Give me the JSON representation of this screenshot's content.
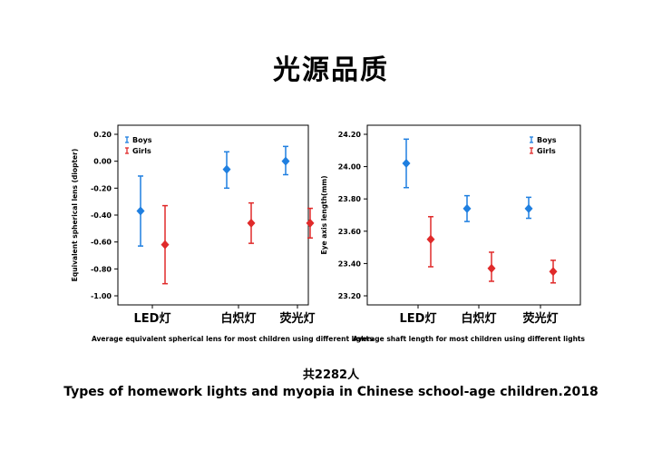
{
  "page": {
    "title": "光源品质",
    "count": "共2282人",
    "caption": "Types of homework lights and myopia in Chinese school-age children.2018"
  },
  "colors": {
    "boys": "#1f7fe0",
    "girls": "#e02a2a"
  },
  "chart_data": [
    {
      "type": "errorbar",
      "categories": [
        "LED灯",
        "白炽灯",
        "荧光灯"
      ],
      "ylabel": "Equivalent spherical lens (diopter)",
      "caption": "Average equivalent spherical lens for most children using different lights",
      "ylim": [
        -1.0,
        0.2
      ],
      "yticks": [
        "0.20",
        "0.00",
        "-0.20",
        "-0.40",
        "-0.60",
        "-0.80",
        "-1.00"
      ],
      "legend_position": "top-left",
      "series": [
        {
          "name": "Boys",
          "mean": [
            -0.37,
            -0.06,
            0.0
          ],
          "lower": [
            -0.63,
            -0.2,
            -0.1
          ],
          "upper": [
            -0.11,
            0.07,
            0.11
          ]
        },
        {
          "name": "Girls",
          "mean": [
            -0.62,
            -0.46,
            -0.46
          ],
          "lower": [
            -0.91,
            -0.61,
            -0.57
          ],
          "upper": [
            -0.33,
            -0.31,
            -0.35
          ]
        }
      ]
    },
    {
      "type": "errorbar",
      "categories": [
        "LED灯",
        "白炽灯",
        "荧光灯"
      ],
      "ylabel": "Eye axis length(mm)",
      "caption": "Average shaft length for most children using different lights",
      "ylim": [
        23.2,
        24.2
      ],
      "yticks": [
        "24.20",
        "24.00",
        "23.80",
        "23.60",
        "23.40",
        "23.20"
      ],
      "legend_position": "top-right",
      "series": [
        {
          "name": "Boys",
          "mean": [
            24.02,
            23.74,
            23.74
          ],
          "lower": [
            23.87,
            23.66,
            23.68
          ],
          "upper": [
            24.17,
            23.82,
            23.81
          ]
        },
        {
          "name": "Girls",
          "mean": [
            23.55,
            23.37,
            23.35
          ],
          "lower": [
            23.38,
            23.29,
            23.28
          ],
          "upper": [
            23.69,
            23.47,
            23.42
          ]
        }
      ]
    }
  ]
}
